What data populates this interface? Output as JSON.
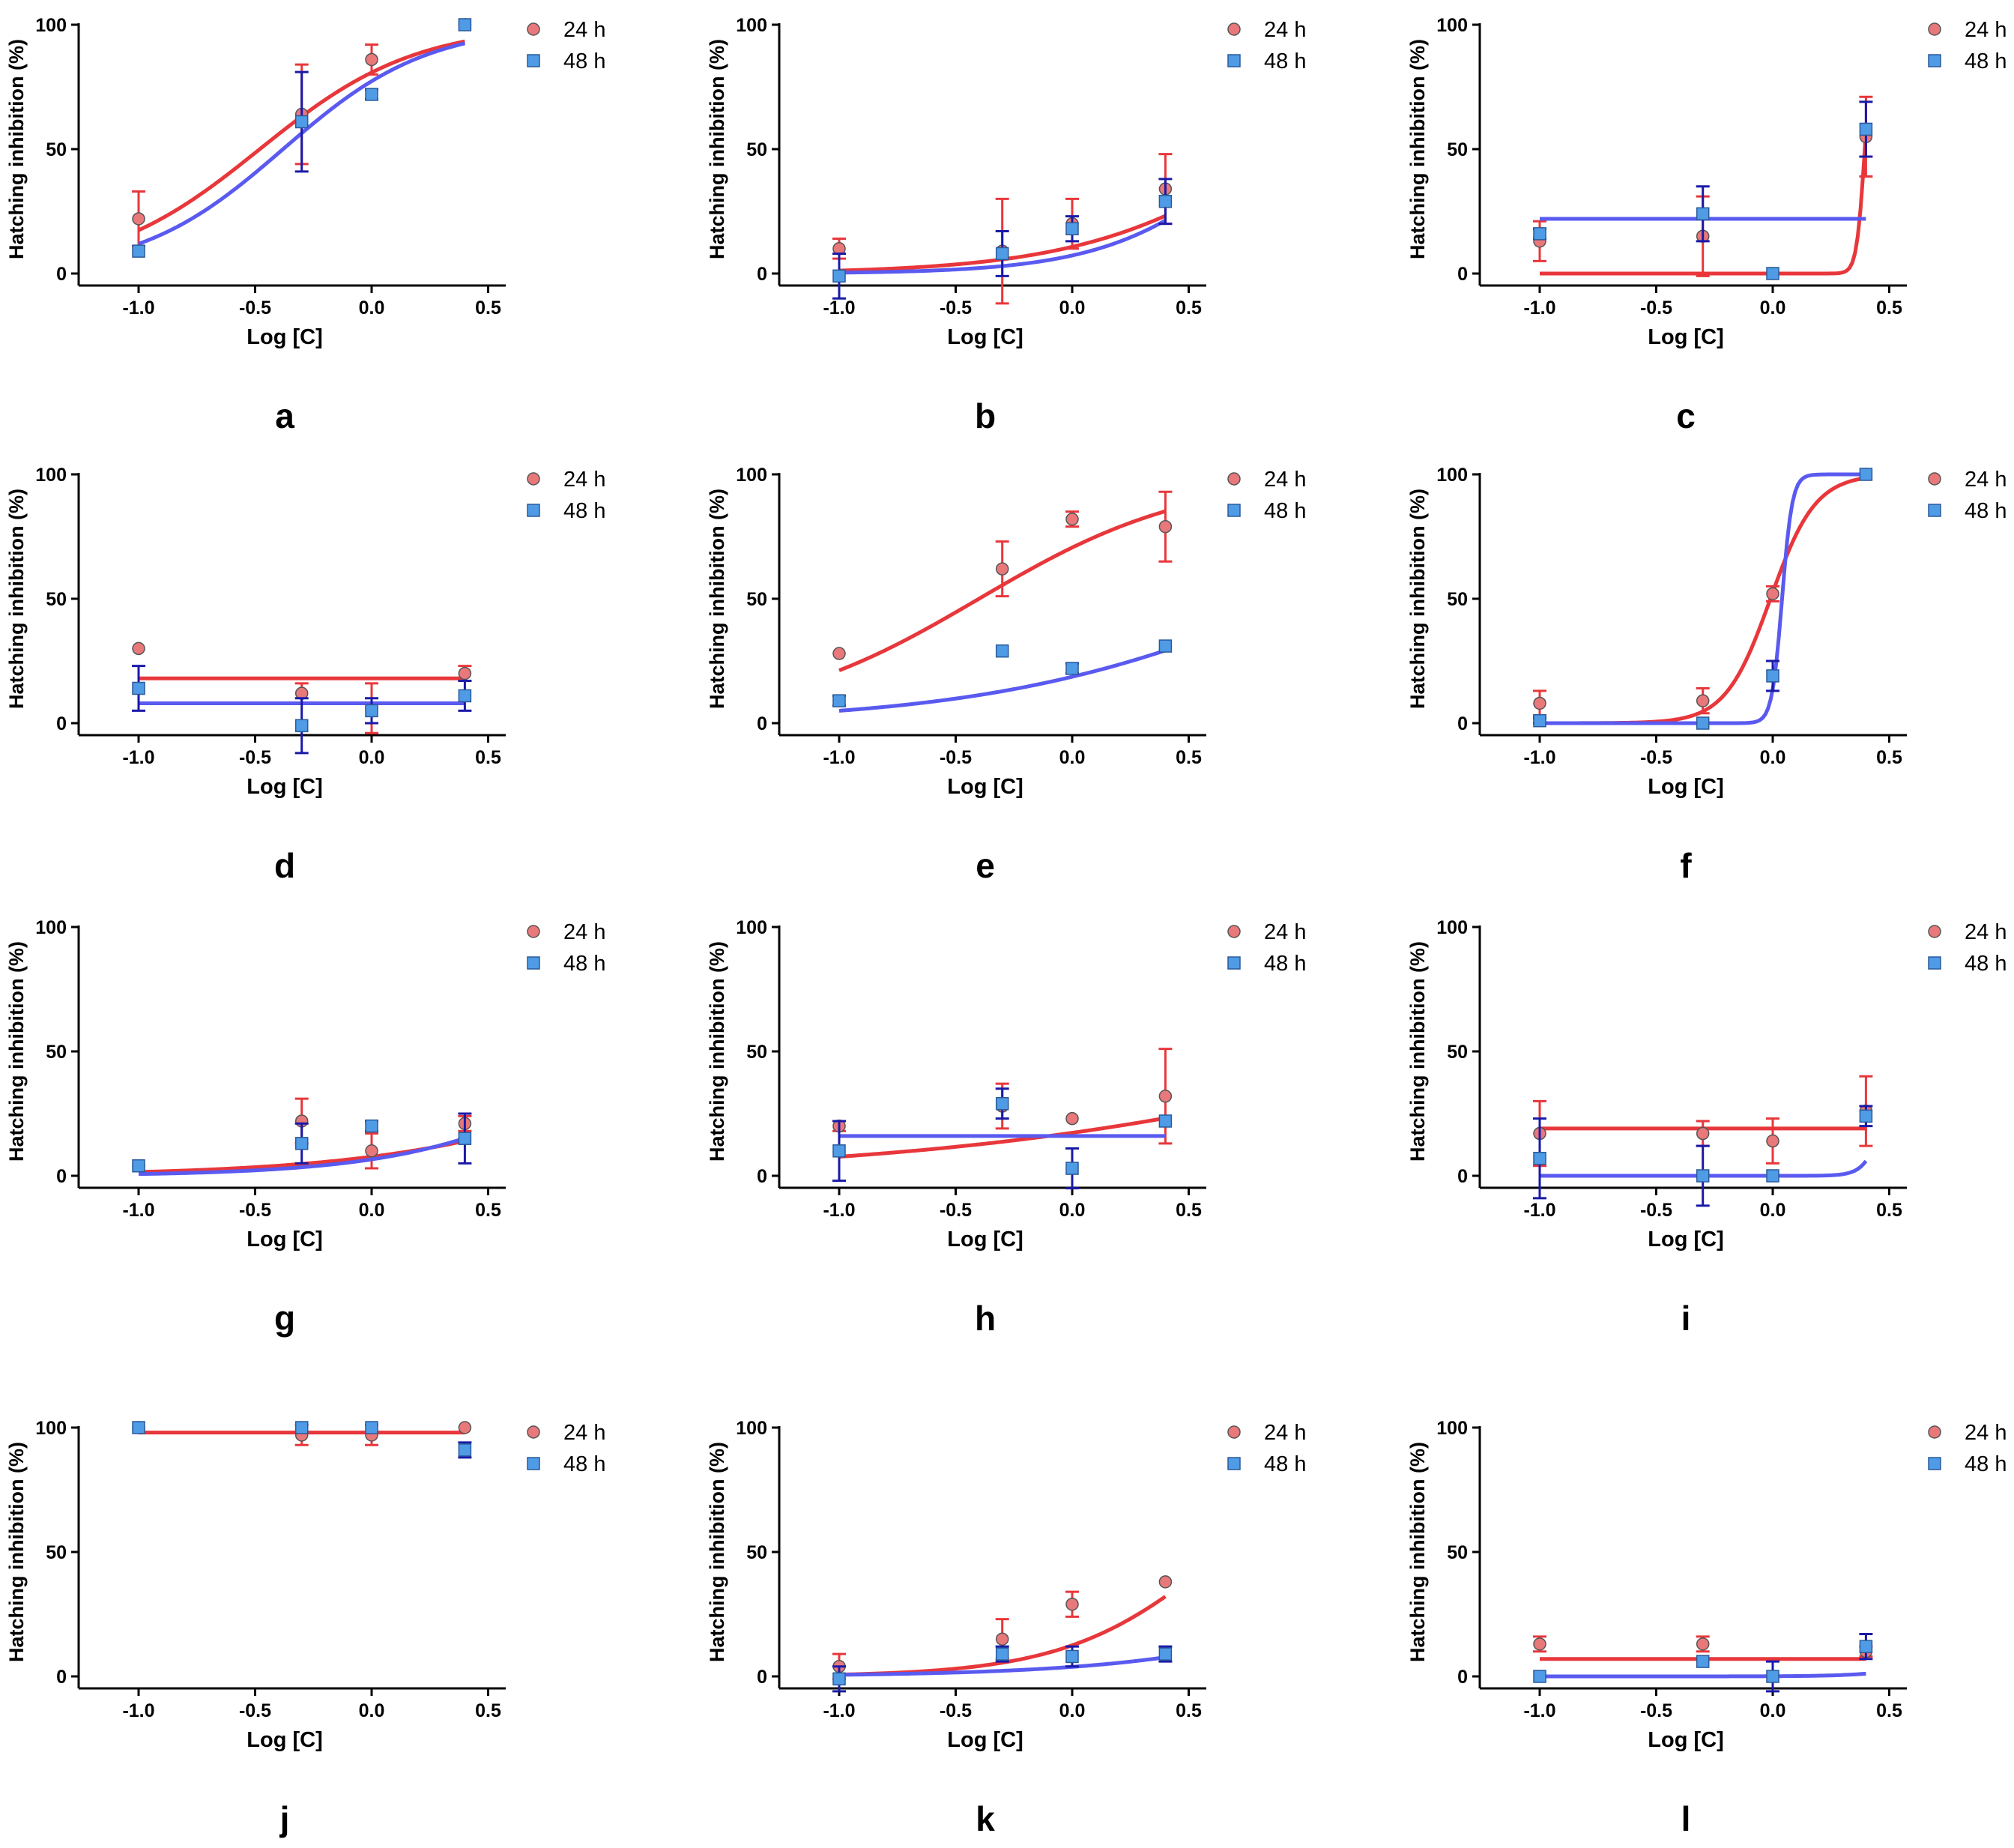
{
  "figure_title": "",
  "colors": {
    "series_24h": "#e8373b",
    "series_24h_fill": "#e9787a",
    "series_48h": "#5a5af0",
    "series_48h_fill": "#4f9be6",
    "errorbar_48h": "#1a1aa8",
    "axis": "#000000"
  },
  "chart_data": [
    {
      "panel_label": "a",
      "type": "line",
      "xlabel": "Log [C]",
      "ylabel": "Hatching inhibition (%)",
      "xlim": [
        -1.25,
        0.5
      ],
      "ylim": [
        0,
        100
      ],
      "xticks": [
        -1.0,
        -0.5,
        0.0,
        0.5
      ],
      "xtick_labels": [
        "-1.0",
        "-0.5",
        "0.0",
        "0.5"
      ],
      "yticks": [
        0,
        50,
        100
      ],
      "ytick_labels": [
        "0",
        "50",
        "100"
      ],
      "grid": false,
      "legend_position": "top-right",
      "series": [
        {
          "name": "24 h",
          "marker": "circle",
          "x": [
            -1.0,
            -0.3,
            0.0,
            0.4
          ],
          "y": [
            22,
            64,
            86,
            100
          ],
          "err": [
            11,
            20,
            6,
            0
          ],
          "curve": {
            "type": "sigmoid",
            "bottom": 0,
            "top": 100,
            "logEC50": -0.48,
            "hill": 1.3
          }
        },
        {
          "name": "48 h",
          "marker": "square",
          "x": [
            -1.0,
            -0.3,
            0.0,
            0.4
          ],
          "y": [
            9,
            61,
            72,
            100
          ],
          "err": [
            0,
            20,
            2,
            0
          ],
          "curve": {
            "type": "sigmoid",
            "bottom": 0,
            "top": 100,
            "logEC50": -0.38,
            "hill": 1.4
          }
        }
      ]
    },
    {
      "panel_label": "b",
      "type": "line",
      "xlabel": "Log [C]",
      "ylabel": "Hatching inhibition (%)",
      "xlim": [
        -1.25,
        0.5
      ],
      "ylim": [
        0,
        100
      ],
      "xticks": [
        -1.0,
        -0.5,
        0.0,
        0.5
      ],
      "xtick_labels": [
        "-1.0",
        "-0.5",
        "0.0",
        "0.5"
      ],
      "yticks": [
        0,
        50,
        100
      ],
      "ytick_labels": [
        "0",
        "50",
        "100"
      ],
      "grid": false,
      "legend_position": "top-right",
      "series": [
        {
          "name": "24 h",
          "marker": "circle",
          "x": [
            -1.0,
            -0.3,
            0.0,
            0.4
          ],
          "y": [
            10,
            9,
            20,
            34
          ],
          "err": [
            4,
            21,
            10,
            14
          ],
          "curve": {
            "type": "sigmoid",
            "bottom": 0,
            "top": 100,
            "logEC50": 0.92,
            "hill": 1.0
          }
        },
        {
          "name": "48 h",
          "marker": "square",
          "x": [
            -1.0,
            -0.3,
            0.0,
            0.4
          ],
          "y": [
            -1,
            8,
            18,
            29
          ],
          "err": [
            9,
            9,
            5,
            9
          ],
          "curve": {
            "type": "sigmoid",
            "bottom": 0,
            "top": 100,
            "logEC50": 0.82,
            "hill": 1.35
          }
        }
      ]
    },
    {
      "panel_label": "c",
      "type": "line",
      "xlabel": "Log [C]",
      "ylabel": "Hatching inhibition (%)",
      "xlim": [
        -1.25,
        0.5
      ],
      "ylim": [
        0,
        100
      ],
      "xticks": [
        -1.0,
        -0.5,
        0.0,
        0.5
      ],
      "xtick_labels": [
        "-1.0",
        "-0.5",
        "0.0",
        "0.5"
      ],
      "yticks": [
        0,
        50,
        100
      ],
      "ytick_labels": [
        "0",
        "50",
        "100"
      ],
      "grid": false,
      "legend_position": "top-right",
      "series": [
        {
          "name": "24 h",
          "marker": "circle",
          "x": [
            -1.0,
            -0.3,
            0.0,
            0.4
          ],
          "y": [
            13,
            15,
            0,
            55
          ],
          "err": [
            8,
            16,
            0,
            16
          ],
          "curve": {
            "type": "sigmoid",
            "bottom": 0,
            "top": 100,
            "logEC50": 0.395,
            "hill": 25
          }
        },
        {
          "name": "48 h",
          "marker": "square",
          "x": [
            -1.0,
            -0.3,
            0.0,
            0.4
          ],
          "y": [
            16,
            24,
            0,
            58
          ],
          "err": [
            2,
            11,
            0,
            11
          ],
          "curve": {
            "type": "flat",
            "value": 22
          }
        }
      ]
    },
    {
      "panel_label": "d",
      "type": "line",
      "xlabel": "Log [C]",
      "ylabel": "Hatching inhibition (%)",
      "xlim": [
        -1.25,
        0.5
      ],
      "ylim": [
        0,
        100
      ],
      "xticks": [
        -1.0,
        -0.5,
        0.0,
        0.5
      ],
      "xtick_labels": [
        "-1.0",
        "-0.5",
        "0.0",
        "0.5"
      ],
      "yticks": [
        0,
        50,
        100
      ],
      "ytick_labels": [
        "0",
        "50",
        "100"
      ],
      "grid": false,
      "legend_position": "top-right",
      "series": [
        {
          "name": "24 h",
          "marker": "circle",
          "x": [
            -1.0,
            -0.3,
            0.0,
            0.4
          ],
          "y": [
            30,
            12,
            6,
            20
          ],
          "err": [
            0,
            4,
            10,
            3
          ],
          "curve": {
            "type": "flat",
            "value": 18
          }
        },
        {
          "name": "48 h",
          "marker": "square",
          "x": [
            -1.0,
            -0.3,
            0.0,
            0.4
          ],
          "y": [
            14,
            -1,
            5,
            11
          ],
          "err": [
            9,
            11,
            5,
            6
          ],
          "curve": {
            "type": "flat",
            "value": 8
          }
        }
      ]
    },
    {
      "panel_label": "e",
      "type": "line",
      "xlabel": "Log [C]",
      "ylabel": "Hatching inhibition (%)",
      "xlim": [
        -1.25,
        0.5
      ],
      "ylim": [
        0,
        100
      ],
      "xticks": [
        -1.0,
        -0.5,
        0.0,
        0.5
      ],
      "xtick_labels": [
        "-1.0",
        "-0.5",
        "0.0",
        "0.5"
      ],
      "yticks": [
        0,
        50,
        100
      ],
      "ytick_labels": [
        "0",
        "50",
        "100"
      ],
      "grid": false,
      "legend_position": "top-right",
      "series": [
        {
          "name": "24 h",
          "marker": "circle",
          "x": [
            -1.0,
            -0.3,
            0.0,
            0.4
          ],
          "y": [
            28,
            62,
            82,
            79
          ],
          "err": [
            0,
            11,
            3,
            14
          ],
          "curve": {
            "type": "sigmoid",
            "bottom": 0,
            "top": 100,
            "logEC50": -0.4,
            "hill": 0.95
          }
        },
        {
          "name": "48 h",
          "marker": "square",
          "x": [
            -1.0,
            -0.3,
            0.0,
            0.4
          ],
          "y": [
            9,
            29,
            22,
            31
          ],
          "err": [
            2,
            0,
            2,
            0
          ],
          "curve": {
            "type": "sigmoid",
            "bottom": 0,
            "top": 100,
            "logEC50": 1.0,
            "hill": 0.64
          }
        }
      ]
    },
    {
      "panel_label": "f",
      "type": "line",
      "xlabel": "Log [C]",
      "ylabel": "Hatching inhibition (%)",
      "xlim": [
        -1.25,
        0.5
      ],
      "ylim": [
        0,
        100
      ],
      "xticks": [
        -1.0,
        -0.5,
        0.0,
        0.5
      ],
      "xtick_labels": [
        "-1.0",
        "-0.5",
        "0.0",
        "0.5"
      ],
      "yticks": [
        0,
        50,
        100
      ],
      "ytick_labels": [
        "0",
        "50",
        "100"
      ],
      "grid": false,
      "legend_position": "top-right",
      "series": [
        {
          "name": "24 h",
          "marker": "circle",
          "x": [
            -1.0,
            -0.3,
            0.0,
            0.4
          ],
          "y": [
            8,
            9,
            52,
            100
          ],
          "err": [
            5,
            5,
            3,
            0
          ],
          "curve": {
            "type": "sigmoid",
            "bottom": 0,
            "top": 100,
            "logEC50": -0.01,
            "hill": 4.5
          }
        },
        {
          "name": "48 h",
          "marker": "square",
          "x": [
            -1.0,
            -0.3,
            0.0,
            0.4
          ],
          "y": [
            1,
            0,
            19,
            100
          ],
          "err": [
            1,
            0,
            6,
            0
          ],
          "curve": {
            "type": "sigmoid",
            "bottom": 0,
            "top": 100,
            "logEC50": 0.04,
            "hill": 20
          }
        }
      ]
    },
    {
      "panel_label": "g",
      "type": "line",
      "xlabel": "Log [C]",
      "ylabel": "Hatching inhibition (%)",
      "xlim": [
        -1.25,
        0.5
      ],
      "ylim": [
        0,
        100
      ],
      "xticks": [
        -1.0,
        -0.5,
        0.0,
        0.5
      ],
      "xtick_labels": [
        "-1.0",
        "-0.5",
        "0.0",
        "0.5"
      ],
      "yticks": [
        0,
        50,
        100
      ],
      "ytick_labels": [
        "0",
        "50",
        "100"
      ],
      "grid": false,
      "legend_position": "top-right",
      "series": [
        {
          "name": "24 h",
          "marker": "circle",
          "x": [
            -1.0,
            -0.3,
            0.0,
            0.4
          ],
          "y": [
            4,
            22,
            10,
            21
          ],
          "err": [
            0,
            9,
            7,
            3
          ],
          "curve": {
            "type": "sigmoid",
            "bottom": 0,
            "top": 100,
            "logEC50": 1.48,
            "hill": 0.73
          }
        },
        {
          "name": "48 h",
          "marker": "square",
          "x": [
            -1.0,
            -0.3,
            0.0,
            0.4
          ],
          "y": [
            4,
            13,
            20,
            15
          ],
          "err": [
            0,
            8,
            2,
            10
          ],
          "curve": {
            "type": "sigmoid",
            "bottom": 0,
            "top": 100,
            "logEC50": 1.15,
            "hill": 1.0
          }
        }
      ]
    },
    {
      "panel_label": "h",
      "type": "line",
      "xlabel": "Log [C]",
      "ylabel": "Hatching inhibition (%)",
      "xlim": [
        -1.25,
        0.5
      ],
      "ylim": [
        0,
        100
      ],
      "xticks": [
        -1.0,
        -0.5,
        0.0,
        0.5
      ],
      "xtick_labels": [
        "-1.0",
        "-0.5",
        "0.0",
        "0.5"
      ],
      "yticks": [
        0,
        50,
        100
      ],
      "ytick_labels": [
        "0",
        "50",
        "100"
      ],
      "grid": false,
      "legend_position": "top-right",
      "series": [
        {
          "name": "24 h",
          "marker": "circle",
          "x": [
            -1.0,
            -0.3,
            0.0,
            0.4
          ],
          "y": [
            20,
            28,
            23,
            32
          ],
          "err": [
            2,
            9,
            0,
            19
          ],
          "curve": {
            "type": "sigmoid",
            "bottom": 0,
            "top": 100,
            "logEC50": 1.7,
            "hill": 0.4
          }
        },
        {
          "name": "48 h",
          "marker": "square",
          "x": [
            -1.0,
            -0.3,
            0.0,
            0.4
          ],
          "y": [
            10,
            29,
            3,
            22
          ],
          "err": [
            12,
            6,
            8,
            0
          ],
          "curve": {
            "type": "flat",
            "value": 16
          }
        }
      ]
    },
    {
      "panel_label": "i",
      "type": "line",
      "xlabel": "Log [C]",
      "ylabel": "Hatching inhibition (%)",
      "xlim": [
        -1.25,
        0.5
      ],
      "ylim": [
        0,
        100
      ],
      "xticks": [
        -1.0,
        -0.5,
        0.0,
        0.5
      ],
      "xtick_labels": [
        "-1.0",
        "-0.5",
        "0.0",
        "0.5"
      ],
      "yticks": [
        0,
        50,
        100
      ],
      "ytick_labels": [
        "0",
        "50",
        "100"
      ],
      "grid": false,
      "legend_position": "top-right",
      "series": [
        {
          "name": "24 h",
          "marker": "circle",
          "x": [
            -1.0,
            -0.3,
            0.0,
            0.4
          ],
          "y": [
            17,
            17,
            14,
            26
          ],
          "err": [
            13,
            5,
            9,
            14
          ],
          "curve": {
            "type": "flat",
            "value": 19
          }
        },
        {
          "name": "48 h",
          "marker": "square",
          "x": [
            -1.0,
            -0.3,
            0.0,
            0.4
          ],
          "y": [
            7,
            0,
            0,
            24
          ],
          "err": [
            16,
            12,
            0,
            4
          ],
          "curve": {
            "type": "sigmoid",
            "bottom": 0,
            "top": 100,
            "logEC50": 0.52,
            "hill": 10
          }
        }
      ]
    },
    {
      "panel_label": "j",
      "type": "line",
      "xlabel": "Log [C]",
      "ylabel": "Hatching inhibition (%)",
      "xlim": [
        -1.25,
        0.5
      ],
      "ylim": [
        0,
        100
      ],
      "xticks": [
        -1.0,
        -0.5,
        0.0,
        0.5
      ],
      "xtick_labels": [
        "-1.0",
        "-0.5",
        "0.0",
        "0.5"
      ],
      "yticks": [
        0,
        50,
        100
      ],
      "ytick_labels": [
        "0",
        "50",
        "100"
      ],
      "grid": false,
      "legend_position": "top-right",
      "series": [
        {
          "name": "24 h",
          "marker": "circle",
          "x": [
            -1.0,
            -0.3,
            0.0,
            0.4
          ],
          "y": [
            100,
            97,
            97,
            100
          ],
          "err": [
            0,
            4,
            4,
            0
          ],
          "curve": {
            "type": "flat",
            "value": 98
          }
        },
        {
          "name": "48 h",
          "marker": "square",
          "x": [
            -1.0,
            -0.3,
            0.0,
            0.4
          ],
          "y": [
            100,
            100,
            100,
            91
          ],
          "err": [
            0,
            0,
            0,
            3
          ],
          "curve": {
            "type": "none"
          }
        }
      ]
    },
    {
      "panel_label": "k",
      "type": "line",
      "xlabel": "Log [C]",
      "ylabel": "Hatching inhibition (%)",
      "xlim": [
        -1.25,
        0.5
      ],
      "ylim": [
        0,
        100
      ],
      "xticks": [
        -1.0,
        -0.5,
        0.0,
        0.5
      ],
      "xtick_labels": [
        "-1.0",
        "-0.5",
        "0.0",
        "0.5"
      ],
      "yticks": [
        0,
        50,
        100
      ],
      "ytick_labels": [
        "0",
        "50",
        "100"
      ],
      "grid": false,
      "legend_position": "top-right",
      "series": [
        {
          "name": "24 h",
          "marker": "circle",
          "x": [
            -1.0,
            -0.3,
            0.0,
            0.4
          ],
          "y": [
            4,
            15,
            29,
            38
          ],
          "err": [
            5,
            8,
            5,
            0
          ],
          "curve": {
            "type": "sigmoid",
            "bottom": 0,
            "top": 100,
            "logEC50": 0.65,
            "hill": 1.3
          }
        },
        {
          "name": "48 h",
          "marker": "square",
          "x": [
            -1.0,
            -0.3,
            0.0,
            0.4
          ],
          "y": [
            -1,
            9,
            8,
            9
          ],
          "err": [
            5,
            3,
            4,
            3
          ],
          "curve": {
            "type": "sigmoid",
            "bottom": 0,
            "top": 100,
            "logEC50": 1.75,
            "hill": 0.8
          }
        }
      ]
    },
    {
      "panel_label": "l",
      "type": "line",
      "xlabel": "Log [C]",
      "ylabel": "Hatching inhibition (%)",
      "xlim": [
        -1.25,
        0.5
      ],
      "ylim": [
        0,
        100
      ],
      "xticks": [
        -1.0,
        -0.5,
        0.0,
        0.5
      ],
      "xtick_labels": [
        "-1.0",
        "-0.5",
        "0.0",
        "0.5"
      ],
      "yticks": [
        0,
        50,
        100
      ],
      "ytick_labels": [
        "0",
        "50",
        "100"
      ],
      "grid": false,
      "legend_position": "top-right",
      "series": [
        {
          "name": "24 h",
          "marker": "circle",
          "x": [
            -1.0,
            -0.3,
            0.0,
            0.4
          ],
          "y": [
            13,
            13,
            0,
            10
          ],
          "err": [
            3,
            3,
            0,
            2
          ],
          "curve": {
            "type": "flat",
            "value": 7
          }
        },
        {
          "name": "48 h",
          "marker": "square",
          "x": [
            -1.0,
            -0.3,
            0.0,
            0.4
          ],
          "y": [
            0,
            6,
            0,
            12
          ],
          "err": [
            0,
            0,
            6,
            5
          ],
          "curve": {
            "type": "sigmoid",
            "bottom": 0,
            "top": 100,
            "logEC50": 1.05,
            "hill": 3.0
          }
        }
      ]
    }
  ]
}
